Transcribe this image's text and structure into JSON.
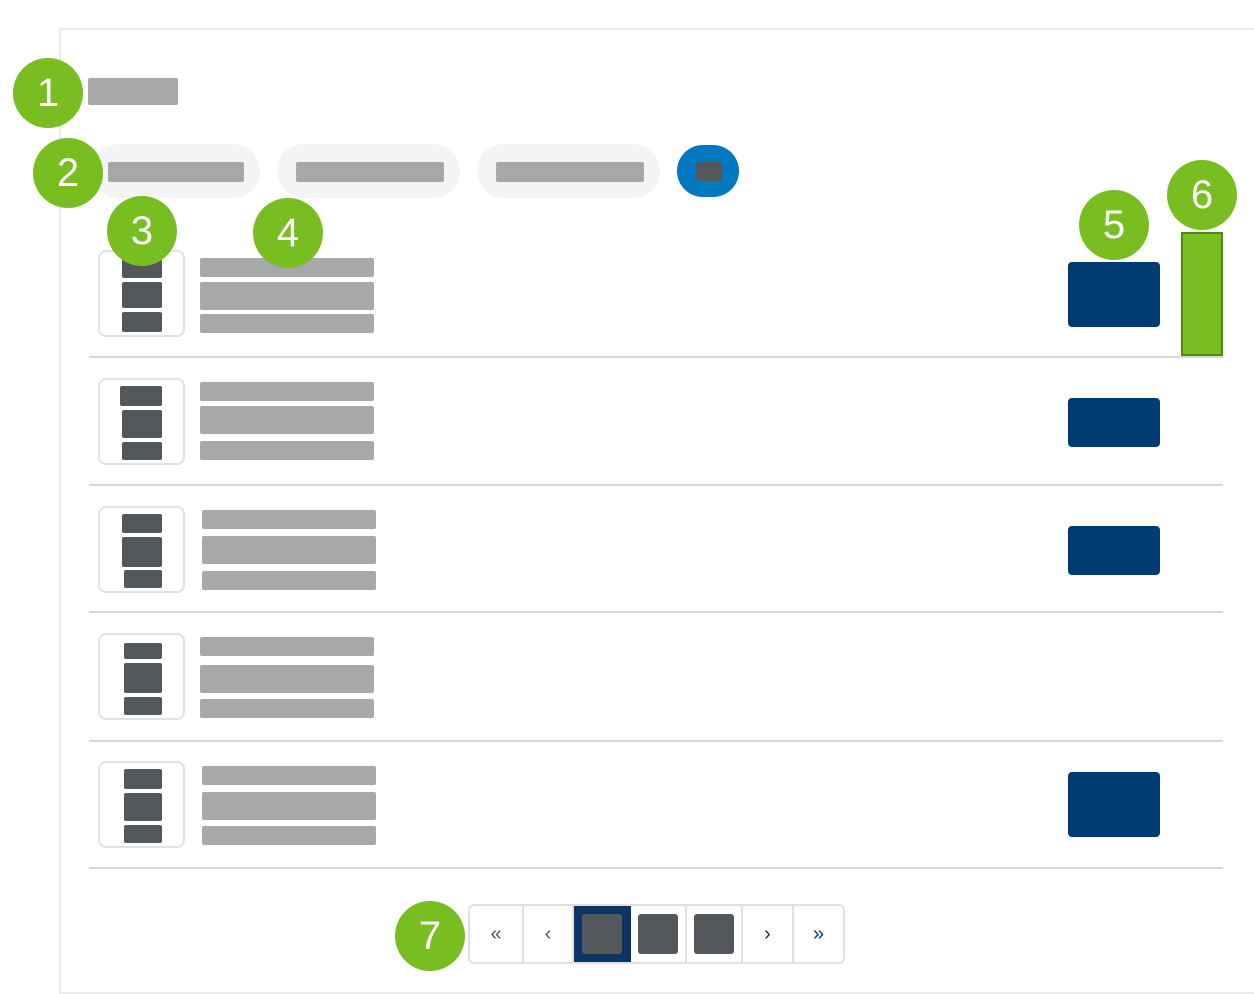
{
  "badges": [
    "1",
    "2",
    "3",
    "4",
    "5",
    "6",
    "7"
  ],
  "pagination": {
    "first": "«",
    "prev": "‹",
    "next": "›",
    "last": "»",
    "current_page_index": 1
  },
  "colors": {
    "callout": "#78be20",
    "primary_button": "#003b71",
    "toggle": "#0079c1",
    "placeholder_text": "#a7a8aa",
    "placeholder_dark": "#54575b"
  }
}
